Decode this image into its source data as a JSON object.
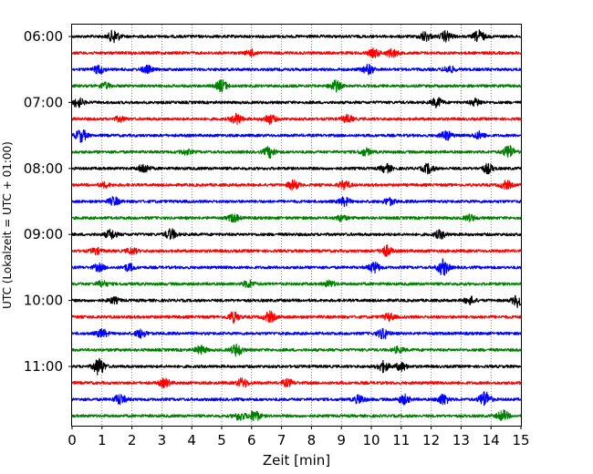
{
  "chart_data": {
    "type": "line",
    "xlabel": "Zeit  [min]",
    "ylabel": "UTC (Lokalzeit = UTC + 01:00)",
    "xlim": [
      0,
      15
    ],
    "x_ticks": [
      "0",
      "1",
      "2",
      "3",
      "4",
      "5",
      "6",
      "7",
      "8",
      "9",
      "10",
      "11",
      "12",
      "13",
      "14",
      "15"
    ],
    "y_tick_labels": [
      "06:00",
      "07:00",
      "08:00",
      "09:00",
      "10:00",
      "11:00"
    ],
    "grid": "vertical dotted at each minute",
    "trace_interval_minutes": 15,
    "trace_count": 24,
    "colors": [
      "#000000",
      "#ff0000",
      "#0000ff",
      "#008000"
    ],
    "noise_amplitude": 0.13,
    "bursts": [
      [
        [
          1.4,
          0.55
        ],
        [
          11.8,
          0.4
        ],
        [
          12.5,
          0.45
        ],
        [
          13.6,
          0.5
        ]
      ],
      [
        [
          6,
          0.25
        ],
        [
          10.1,
          0.35
        ],
        [
          10.7,
          0.35
        ]
      ],
      [
        [
          0.9,
          0.35
        ],
        [
          2.5,
          0.3
        ],
        [
          9.9,
          0.4
        ],
        [
          12.6,
          0.3
        ]
      ],
      [
        [
          1.1,
          0.25
        ],
        [
          5.0,
          0.5
        ],
        [
          8.8,
          0.45
        ]
      ],
      [
        [
          0.2,
          0.4
        ],
        [
          12.2,
          0.4
        ],
        [
          13.5,
          0.3
        ]
      ],
      [
        [
          1.6,
          0.2
        ],
        [
          5.5,
          0.45
        ],
        [
          6.6,
          0.4
        ],
        [
          9.2,
          0.3
        ]
      ],
      [
        [
          0.3,
          0.55
        ],
        [
          12.5,
          0.4
        ],
        [
          13.6,
          0.3
        ]
      ],
      [
        [
          3.8,
          0.2
        ],
        [
          6.6,
          0.45
        ],
        [
          9.8,
          0.3
        ],
        [
          14.6,
          0.55
        ]
      ],
      [
        [
          2.4,
          0.4
        ],
        [
          10.5,
          0.35
        ],
        [
          11.9,
          0.4
        ],
        [
          13.9,
          0.4
        ]
      ],
      [
        [
          1.1,
          0.2
        ],
        [
          7.4,
          0.4
        ],
        [
          9.1,
          0.35
        ],
        [
          14.5,
          0.35
        ]
      ],
      [
        [
          1.4,
          0.35
        ],
        [
          9.1,
          0.35
        ],
        [
          10.6,
          0.3
        ]
      ],
      [
        [
          5.4,
          0.35
        ],
        [
          9.0,
          0.25
        ],
        [
          13.3,
          0.25
        ]
      ],
      [
        [
          1.3,
          0.4
        ],
        [
          3.3,
          0.45
        ],
        [
          12.3,
          0.35
        ]
      ],
      [
        [
          0.8,
          0.25
        ],
        [
          2.0,
          0.25
        ],
        [
          10.5,
          0.45
        ]
      ],
      [
        [
          0.9,
          0.3
        ],
        [
          1.9,
          0.3
        ],
        [
          10.1,
          0.45
        ],
        [
          12.4,
          0.7
        ]
      ],
      [
        [
          1.0,
          0.25
        ],
        [
          5.9,
          0.3
        ],
        [
          8.6,
          0.25
        ]
      ],
      [
        [
          1.4,
          0.25
        ],
        [
          14.9,
          0.55
        ],
        [
          13.3,
          0.3
        ]
      ],
      [
        [
          5.4,
          0.45
        ],
        [
          6.6,
          0.45
        ],
        [
          10.6,
          0.3
        ]
      ],
      [
        [
          1.0,
          0.35
        ],
        [
          2.3,
          0.35
        ],
        [
          10.4,
          0.45
        ]
      ],
      [
        [
          4.3,
          0.35
        ],
        [
          5.5,
          0.5
        ],
        [
          10.9,
          0.25
        ]
      ],
      [
        [
          0.9,
          0.75
        ],
        [
          10.4,
          0.45
        ],
        [
          11.0,
          0.35
        ]
      ],
      [
        [
          3.1,
          0.35
        ],
        [
          5.7,
          0.4
        ],
        [
          7.2,
          0.3
        ]
      ],
      [
        [
          1.6,
          0.45
        ],
        [
          9.6,
          0.35
        ],
        [
          11.1,
          0.4
        ],
        [
          12.4,
          0.45
        ],
        [
          13.8,
          0.7
        ]
      ],
      [
        [
          5.6,
          0.35
        ],
        [
          6.1,
          0.45
        ],
        [
          14.4,
          0.45
        ]
      ]
    ]
  }
}
